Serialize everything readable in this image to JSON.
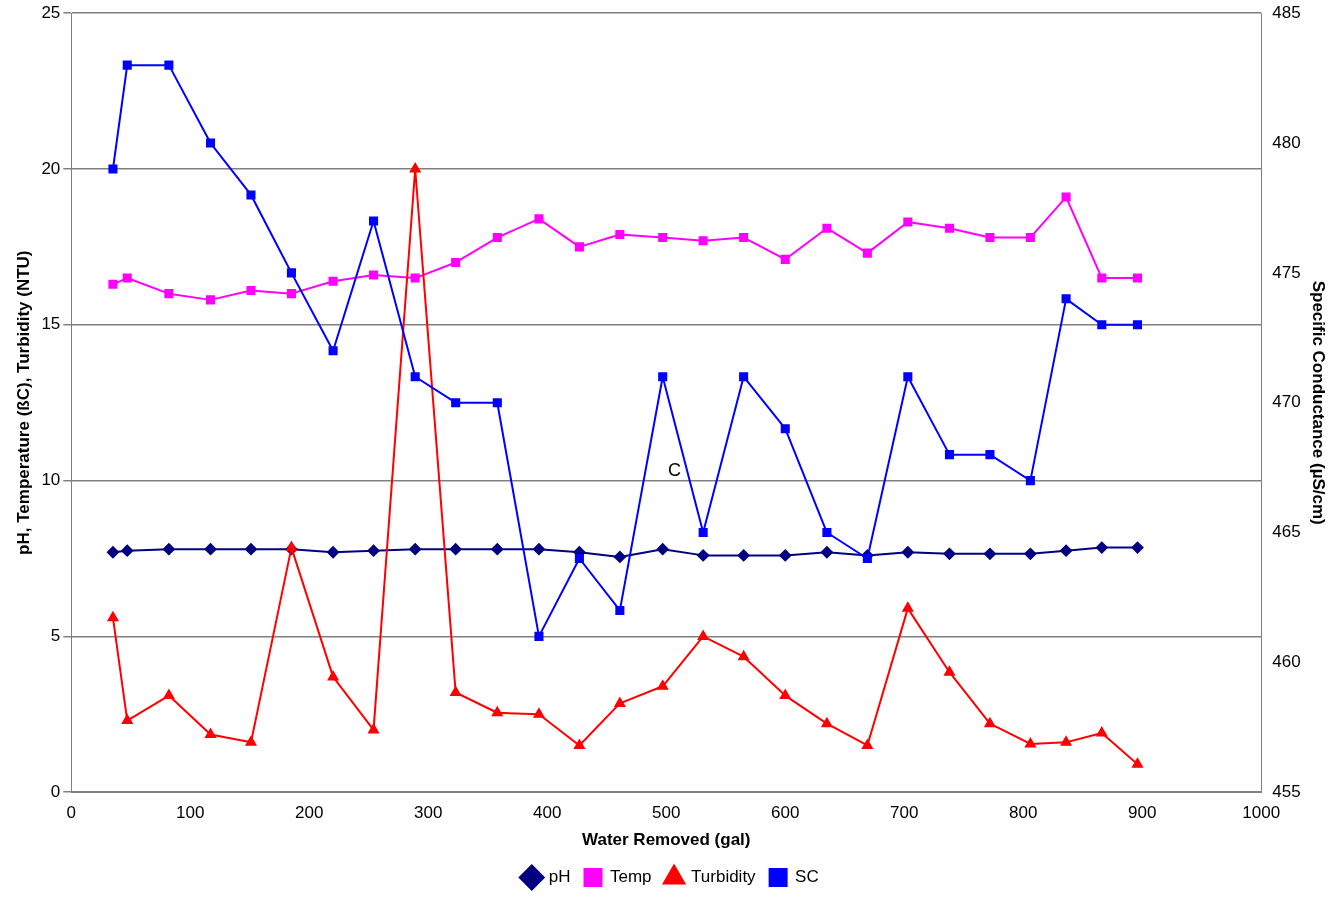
{
  "chart_data": {
    "type": "line",
    "xlabel": "Water Removed (gal)",
    "ylabel": "pH, Temperature (ßC), Turbidity (NTU)",
    "y2label": "Specific Conductance (µS/cm)",
    "x": [
      35,
      47,
      82,
      117,
      151,
      185,
      220,
      254,
      289,
      323,
      358,
      393,
      427,
      461,
      497,
      531,
      565,
      600,
      635,
      669,
      703,
      738,
      772,
      806,
      836,
      866,
      896
    ],
    "xlim": [
      0,
      1000
    ],
    "xticks": [
      0,
      100,
      200,
      300,
      400,
      500,
      600,
      700,
      800,
      900,
      1000
    ],
    "ylim": [
      0,
      25
    ],
    "yticks": [
      0,
      5,
      10,
      15,
      20,
      25
    ],
    "y2lim": [
      455,
      485
    ],
    "y2ticks": [
      455,
      460,
      465,
      470,
      475,
      480,
      485
    ],
    "grid": "y",
    "legend": "bottom",
    "annotations": [
      "C"
    ],
    "series": [
      {
        "name": "pH",
        "color": "#000080",
        "marker": "diamond",
        "values": [
          7.7,
          7.75,
          7.8,
          7.8,
          7.8,
          7.8,
          7.7,
          7.75,
          7.8,
          7.8,
          7.8,
          7.8,
          7.7,
          7.55,
          7.8,
          7.6,
          7.6,
          7.6,
          7.7,
          7.6,
          7.7,
          7.65,
          7.65,
          7.65,
          7.75,
          7.85,
          7.85
        ]
      },
      {
        "name": "Temp",
        "color": "#ff00ff",
        "marker": "square",
        "values": [
          16.3,
          16.5,
          16.0,
          15.8,
          16.1,
          16.0,
          16.4,
          16.6,
          16.5,
          17.0,
          17.8,
          18.4,
          17.5,
          17.9,
          17.8,
          17.7,
          17.8,
          17.1,
          18.1,
          17.3,
          18.3,
          18.1,
          17.8,
          17.8,
          19.1,
          16.5,
          16.5
        ]
      },
      {
        "name": "Turbidity",
        "color": "#ff0000",
        "marker": "triangle",
        "values": [
          5.6,
          2.3,
          3.1,
          1.85,
          1.6,
          7.85,
          3.7,
          2.0,
          20.0,
          3.2,
          2.55,
          2.5,
          1.5,
          2.85,
          3.4,
          5.0,
          4.35,
          3.1,
          2.2,
          1.5,
          5.9,
          3.85,
          2.2,
          1.55,
          1.6,
          1.9,
          0.9
        ]
      },
      {
        "name": "SC",
        "color": "#0000ff",
        "marker": "square",
        "axis": "y2",
        "values": [
          479,
          483,
          483,
          480,
          478,
          475,
          472,
          477,
          471,
          470,
          470,
          461,
          464,
          462,
          471,
          465,
          471,
          469,
          465,
          464,
          471,
          468,
          468,
          467,
          474,
          473,
          473
        ]
      }
    ]
  }
}
